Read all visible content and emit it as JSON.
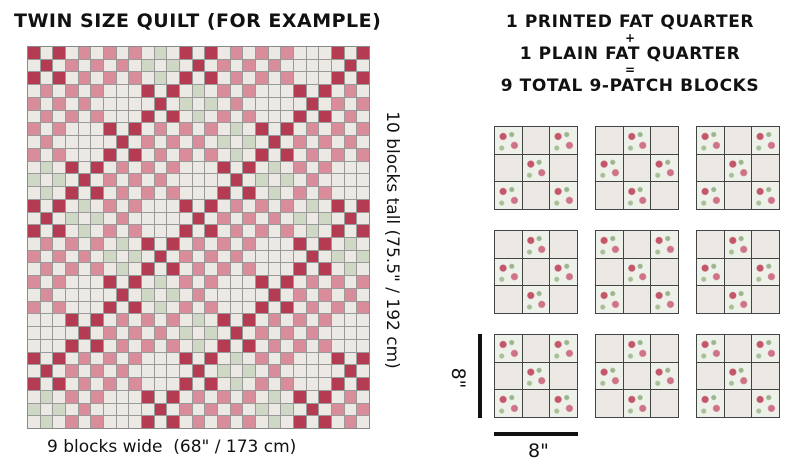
{
  "quilt": {
    "title": "TWIN SIZE QUILT (FOR EXAMPLE)",
    "height_label": "10 blocks tall (75.5\" / 192 cm)",
    "width_label": "9 blocks wide  (68\" / 173 cm)",
    "grid": {
      "cols": 27,
      "rows": 30
    },
    "colors": {
      "cream": "#ece8e3",
      "crimson": "#b43b52",
      "rose": "#d98c9a",
      "sage": "#8da27a",
      "olive": "#6f8a5c",
      "mint": "#cfd8c4"
    }
  },
  "recipe": {
    "line1": "1 PRINTED FAT QUARTER",
    "plus": "+",
    "line2": "1 PLAIN FAT QUARTER",
    "equals": "=",
    "line3": "9 TOTAL 9-PATCH BLOCKS"
  },
  "blocks": {
    "count": 9,
    "colors": {
      "printed": "#eef1ea",
      "plain": "#ece8e3"
    }
  },
  "dimensions": {
    "vertical_label": "8\"",
    "horizontal_label": "8\""
  }
}
